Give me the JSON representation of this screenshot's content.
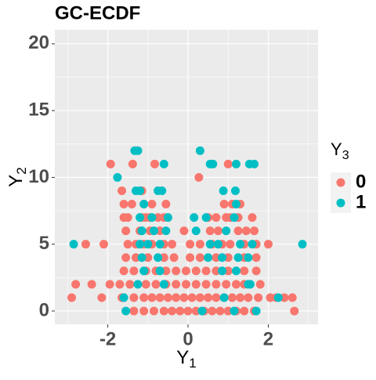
{
  "chart_data": {
    "type": "scatter",
    "title": "GC-ECDF",
    "xlabel": "Y",
    "xlabel_sub": "1",
    "ylabel": "Y",
    "ylabel_sub": "2",
    "legend_title": "Y",
    "legend_title_sub": "3",
    "xlim": [
      -3.32,
      3.24
    ],
    "ylim": [
      -1.0,
      21.05
    ],
    "xticks": [
      -2,
      0,
      2
    ],
    "yticks": [
      0,
      5,
      10,
      15,
      20
    ],
    "grid": true,
    "legend": "right",
    "series": [
      {
        "name": "0",
        "color": "#F8766D",
        "x": [
          -1.35,
          -1.1,
          -0.85,
          -0.6,
          -0.4,
          -0.2,
          0,
          0.2,
          0.4,
          0.6,
          0.8,
          1.0,
          1.2,
          1.4,
          1.65,
          2.65,
          -2.9,
          -2.15,
          -1.65,
          -1.35,
          -1.1,
          -0.9,
          -0.7,
          -0.5,
          -0.3,
          -0.1,
          0.1,
          0.3,
          0.5,
          0.7,
          0.9,
          1.1,
          1.3,
          1.5,
          1.75,
          2.05,
          2.2,
          2.4,
          2.6,
          -2.8,
          -2.4,
          -1.95,
          -1.7,
          -1.45,
          -1.05,
          -0.8,
          -0.55,
          -0.3,
          -0.05,
          0.2,
          0.45,
          0.7,
          0.95,
          1.2,
          1.4,
          1.8,
          -1.6,
          -1.35,
          -1.05,
          -0.8,
          -0.55,
          -0.3,
          -0.05,
          0.2,
          0.45,
          0.7,
          1.0,
          1.4,
          1.7,
          -1.55,
          -1.3,
          -1.0,
          -0.6,
          -0.35,
          0.05,
          0.3,
          0.7,
          1.0,
          1.4,
          1.7,
          -2.55,
          -2.1,
          -1.5,
          -1.3,
          -1.1,
          -0.9,
          -0.6,
          -0.4,
          0.05,
          0.3,
          0.6,
          0.85,
          1.05,
          1.4,
          1.7,
          2.0,
          -1.55,
          -1.2,
          -0.95,
          -0.7,
          -0.1,
          0.55,
          0.75,
          1.25,
          1.45,
          1.65,
          -1.6,
          -1.5,
          -1.15,
          -1.05,
          -0.95,
          -0.75,
          -0.6,
          0.5,
          0.7,
          0.95,
          1.05,
          1.25,
          1.6,
          -1.6,
          -1.4,
          -1.1,
          -0.9,
          -0.55,
          0.9,
          1.1,
          1.3,
          -1.65,
          -1.15,
          0.27,
          -1.93,
          -1.38,
          -0.83,
          1.0
        ],
        "values": [
          0,
          0,
          0,
          0,
          0,
          0,
          0,
          0,
          0,
          0,
          0,
          0,
          0,
          0,
          0,
          0,
          1,
          1,
          1,
          1,
          1,
          1,
          1,
          1,
          1,
          1,
          1,
          1,
          1,
          1,
          1,
          1,
          1,
          1,
          1,
          1,
          1,
          1,
          1,
          2,
          2,
          2,
          2,
          2,
          2,
          2,
          2,
          2,
          2,
          2,
          2,
          2,
          2,
          2,
          2,
          2,
          3,
          3,
          3,
          3,
          3,
          3,
          3,
          3,
          3,
          3,
          3,
          3,
          3,
          4,
          4,
          4,
          4,
          4,
          4,
          4,
          4,
          4,
          4,
          4,
          5,
          5,
          5,
          5,
          5,
          5,
          5,
          5,
          5,
          5,
          5,
          5,
          5,
          5,
          5,
          5,
          6,
          6,
          6,
          6,
          6,
          6,
          6,
          6,
          6,
          6,
          7,
          7,
          7,
          7,
          7,
          7,
          7,
          7,
          7,
          7,
          7,
          7,
          7,
          8,
          8,
          8,
          8,
          8,
          8,
          8,
          8,
          9,
          9,
          10,
          11,
          11,
          11,
          11
        ]
      },
      {
        "name": "1",
        "color": "#00BFC4",
        "x": [
          -1.55,
          0.35,
          1.15,
          1.7,
          -1.6,
          0.9,
          2.25,
          -1.25,
          -0.6,
          1.5,
          1.55,
          -1.1,
          -0.7,
          0.85,
          1.2,
          -1.15,
          -0.75,
          0.5,
          0.85,
          1.25,
          1.5,
          -2.85,
          -1.2,
          -1.0,
          -0.7,
          0.55,
          0.75,
          1.3,
          1.6,
          2.85,
          -1.15,
          -0.85,
          -0.55,
          0.2,
          0.95,
          -1.2,
          -0.9,
          -0.5,
          0.15,
          0.45,
          1.15,
          -1.1,
          1.2,
          -1.3,
          -1.2,
          -0.75,
          -0.65,
          0.88,
          1.18,
          -1.76,
          -0.6,
          0.55,
          0.62,
          1.53,
          1.65,
          1.2,
          -1.33,
          -1.25,
          0.3
        ],
        "values": [
          0,
          0,
          0,
          0,
          1,
          1,
          1,
          2,
          2,
          2,
          2,
          3,
          3,
          3,
          3,
          4,
          4,
          4,
          4,
          4,
          4,
          5,
          5,
          5,
          5,
          5,
          5,
          5,
          5,
          5,
          6,
          6,
          6,
          6,
          6,
          7,
          7,
          7,
          7,
          7,
          7,
          8,
          8,
          9,
          9,
          9,
          9,
          9,
          9,
          10,
          11,
          11,
          11,
          11,
          11,
          11,
          12,
          12,
          12
        ]
      }
    ]
  }
}
